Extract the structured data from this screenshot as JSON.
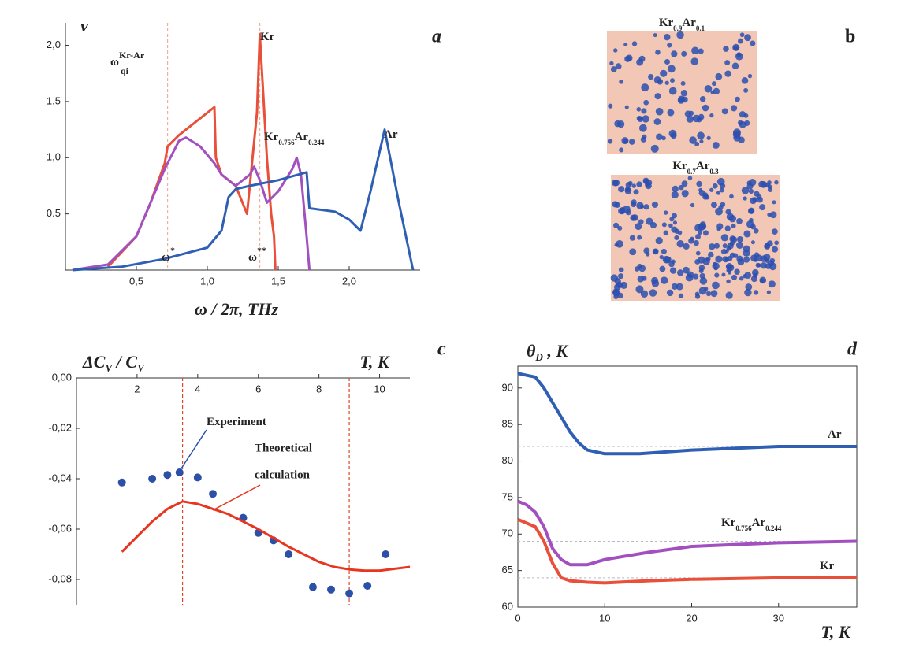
{
  "chart_data": [
    {
      "type": "line",
      "label": "a",
      "xlabel": "ω / 2π, THz",
      "ylabel_parts": [
        "ν"
      ],
      "xlim": [
        0,
        2.5
      ],
      "ylim": [
        0,
        2.2
      ],
      "xticks": [
        {
          "value": 0.5,
          "label": "0,5"
        },
        {
          "value": 1.0,
          "label": "1,0"
        },
        {
          "value": 1.5,
          "label": "1,5"
        },
        {
          "value": 2.0,
          "label": "2,0"
        }
      ],
      "yticks": [
        {
          "value": 0.5,
          "label": "0.5"
        },
        {
          "value": 1.0,
          "label": "1,0"
        },
        {
          "value": 1.5,
          "label": "1.5"
        },
        {
          "value": 2.0,
          "label": "2,0"
        }
      ],
      "vlines": [
        0.72,
        1.37
      ],
      "annotations": [
        {
          "text": "ω",
          "sub": "qi",
          "sup": "Kr-Ar"
        },
        {
          "text": "ω",
          "sup": "*"
        },
        {
          "text": "ω",
          "sup": "**"
        }
      ],
      "series": [
        {
          "name_parts": [
            "Kr"
          ],
          "color": "#e8503a",
          "x": [
            0.3,
            0.5,
            0.6,
            0.7,
            0.72,
            0.8,
            1.05,
            1.06,
            1.1,
            1.2,
            1.28,
            1.35,
            1.37,
            1.42,
            1.45,
            1.47,
            1.48
          ],
          "values": [
            0.03,
            0.3,
            0.6,
            0.95,
            1.1,
            1.2,
            1.45,
            1.0,
            0.85,
            0.75,
            0.5,
            1.4,
            2.1,
            1.0,
            0.5,
            0.3,
            0
          ]
        },
        {
          "name_parts": [
            "Kr",
            "0.756",
            "Ar",
            "0.244"
          ],
          "color": "#a24fbf",
          "x": [
            0.05,
            0.3,
            0.5,
            0.6,
            0.7,
            0.8,
            0.85,
            0.95,
            1.05,
            1.1,
            1.2,
            1.3,
            1.33,
            1.37,
            1.42,
            1.5,
            1.6,
            1.63,
            1.66,
            1.7,
            1.72
          ],
          "values": [
            0,
            0.05,
            0.3,
            0.6,
            0.9,
            1.15,
            1.18,
            1.1,
            0.95,
            0.85,
            0.75,
            0.85,
            0.92,
            0.8,
            0.6,
            0.7,
            0.9,
            1.0,
            0.85,
            0.3,
            0
          ]
        },
        {
          "name_parts": [
            "Ar"
          ],
          "color": "#2f5fb3",
          "x": [
            0.05,
            0.4,
            0.7,
            1.0,
            1.1,
            1.15,
            1.2,
            1.3,
            1.5,
            1.7,
            1.72,
            1.9,
            2.0,
            2.08,
            2.15,
            2.25,
            2.35,
            2.45
          ],
          "values": [
            0,
            0.03,
            0.1,
            0.2,
            0.35,
            0.65,
            0.72,
            0.75,
            0.8,
            0.87,
            0.55,
            0.52,
            0.45,
            0.35,
            0.7,
            1.25,
            0.6,
            0
          ]
        }
      ]
    },
    {
      "type": "image",
      "label": "b",
      "captions": [
        [
          "Kr",
          "0.9",
          "Ar",
          "0.1"
        ],
        [
          "Kr",
          "0.7",
          "Ar",
          "0.3"
        ]
      ]
    },
    {
      "type": "line",
      "label": "c",
      "xlabel": "T, K",
      "ylabel_parts": [
        "ΔC",
        "V",
        " / C",
        "V"
      ],
      "xlim": [
        0,
        11
      ],
      "ylim": [
        -0.09,
        0
      ],
      "xticks": [
        2,
        4,
        6,
        8,
        10
      ],
      "yticks": [
        {
          "value": 0,
          "label": "0,00"
        },
        {
          "value": -0.02,
          "label": "-0,02"
        },
        {
          "value": -0.04,
          "label": "-0,04"
        },
        {
          "value": -0.06,
          "label": "-0,06"
        },
        {
          "value": -0.08,
          "label": "-0,08"
        }
      ],
      "vlines": [
        3.5,
        9
      ],
      "series": [
        {
          "name_parts": [
            "Experiment"
          ],
          "type": "scatter",
          "color": "#2c4fa8",
          "x": [
            1.5,
            2.5,
            3,
            3.4,
            4,
            4.5,
            5.5,
            6,
            6.5,
            7,
            7.8,
            8.4,
            9,
            9.6,
            10.2
          ],
          "values": [
            -0.0415,
            -0.04,
            -0.0385,
            -0.0375,
            -0.0395,
            -0.046,
            -0.0555,
            -0.0615,
            -0.0645,
            -0.07,
            -0.083,
            -0.084,
            -0.0855,
            -0.0825,
            -0.07
          ]
        },
        {
          "name_parts": [
            "Theoretical",
            "",
            "calculation"
          ],
          "type": "line",
          "color": "#e8351f",
          "x": [
            1.5,
            2,
            2.5,
            3,
            3.5,
            4,
            5,
            6,
            7,
            8,
            8.5,
            9,
            9.5,
            10,
            11
          ],
          "values": [
            -0.069,
            -0.063,
            -0.057,
            -0.052,
            -0.049,
            -0.05,
            -0.054,
            -0.06,
            -0.067,
            -0.073,
            -0.075,
            -0.076,
            -0.0765,
            -0.0765,
            -0.075
          ]
        }
      ]
    },
    {
      "type": "line",
      "label": "d",
      "xlabel": "T, K",
      "ylabel_parts": [
        "θ",
        "D",
        " , K"
      ],
      "xlim": [
        0,
        39
      ],
      "ylim": [
        60,
        93
      ],
      "xticks": [
        0,
        10,
        20,
        30
      ],
      "yticks": [
        60,
        65,
        70,
        75,
        80,
        85,
        90
      ],
      "hlines": [
        82,
        69,
        64
      ],
      "series": [
        {
          "name_parts": [
            "Ar"
          ],
          "color": "#2f5fb3",
          "x": [
            0,
            2,
            3,
            4,
            5,
            6,
            7,
            8,
            10,
            14,
            20,
            30,
            39
          ],
          "values": [
            92,
            91.5,
            90,
            88,
            86,
            84,
            82.5,
            81.5,
            81,
            81,
            81.5,
            82,
            82
          ]
        },
        {
          "name_parts": [
            "Kr",
            "0.756",
            "Ar",
            "0.244"
          ],
          "color": "#a24fbf",
          "x": [
            0,
            1,
            2,
            3,
            4,
            5,
            6,
            8,
            10,
            15,
            20,
            30,
            39
          ],
          "values": [
            74.5,
            74,
            73,
            71,
            68,
            66.5,
            65.8,
            65.8,
            66.5,
            67.5,
            68.3,
            68.8,
            69
          ]
        },
        {
          "name_parts": [
            "Kr"
          ],
          "color": "#e8503a",
          "x": [
            0,
            2,
            3,
            4,
            5,
            6,
            8,
            10,
            15,
            20,
            30,
            39
          ],
          "values": [
            72,
            71,
            69,
            66,
            64,
            63.6,
            63.4,
            63.3,
            63.6,
            63.8,
            64,
            64
          ]
        }
      ]
    }
  ]
}
